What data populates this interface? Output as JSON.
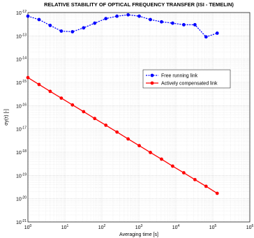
{
  "chart_data": {
    "type": "line",
    "title": "RELATIVE STABILITY OF OPTICAL FREQUENCY TRANSFER (ISI - TEMELIN)",
    "x_label": "Averaging time [s]",
    "y_label": "σy(τ) [-]",
    "log_x": true,
    "log_y": true,
    "grid": true,
    "legend": "upper right",
    "xlim": [
      1,
      1000000
    ],
    "ylim": [
      1e-21,
      1e-12
    ],
    "xticks": [
      {
        "value": 1,
        "label": "10^0"
      },
      {
        "value": 10,
        "label": "10^1"
      },
      {
        "value": 100,
        "label": "10^2"
      },
      {
        "value": 1000,
        "label": "10^3"
      },
      {
        "value": 10000,
        "label": "10^4"
      },
      {
        "value": 100000,
        "label": "10^5"
      },
      {
        "value": 1000000,
        "label": "10^6"
      }
    ],
    "yticks": [
      {
        "value": 1e-21,
        "label": "10^-21"
      },
      {
        "value": 1e-20,
        "label": "10^-20"
      },
      {
        "value": 1e-19,
        "label": "10^-19"
      },
      {
        "value": 1e-18,
        "label": "10^-18"
      },
      {
        "value": 1e-17,
        "label": "10^-17"
      },
      {
        "value": 1e-16,
        "label": "10^-16"
      },
      {
        "value": 1e-15,
        "label": "10^-15"
      },
      {
        "value": 1e-14,
        "label": "10^-14"
      },
      {
        "value": 1e-13,
        "label": "10^-13"
      },
      {
        "value": 1e-12,
        "label": "10^-12"
      }
    ],
    "x": [
      1,
      2,
      4,
      8,
      16,
      32,
      64,
      128,
      256,
      512,
      1024,
      2048,
      4096,
      8192,
      16384,
      32768,
      65536,
      131072
    ],
    "series": [
      {
        "name": "Free running link",
        "color": "#0000ff",
        "dashed": true,
        "values": [
          7e-13,
          5e-13,
          2.8e-13,
          1.6e-13,
          1.5e-13,
          2.2e-13,
          3.5e-13,
          5.5e-13,
          7e-13,
          8e-13,
          7e-13,
          5e-13,
          4e-13,
          3.5e-13,
          3e-13,
          3e-13,
          9e-14,
          1.3e-13
        ]
      },
      {
        "name": "Actively compensated link",
        "color": "#ff0000",
        "dashed": false,
        "values": [
          1.6e-15,
          8.1e-16,
          4.1e-16,
          2.1e-16,
          1.07e-16,
          5.5e-17,
          2.8e-17,
          1.44e-17,
          7.3e-18,
          3.7e-18,
          1.9e-18,
          9.7e-19,
          5e-19,
          2.5e-19,
          1.3e-19,
          6.6e-20,
          3.4e-20,
          1.7e-20
        ]
      }
    ]
  }
}
